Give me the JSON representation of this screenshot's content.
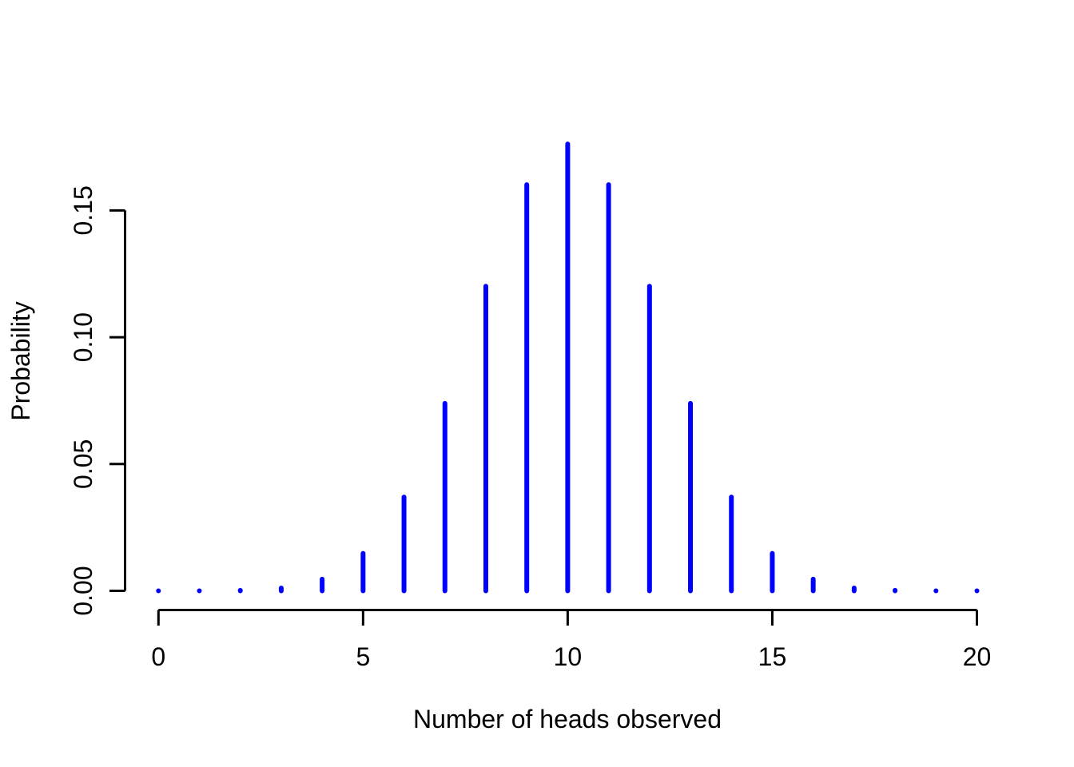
{
  "chart_data": {
    "type": "bar",
    "style": "vertical-spike-pmf",
    "title": "",
    "xlabel": "Number of heads observed",
    "ylabel": "Probability",
    "x": [
      0,
      1,
      2,
      3,
      4,
      5,
      6,
      7,
      8,
      9,
      10,
      11,
      12,
      13,
      14,
      15,
      16,
      17,
      18,
      19,
      20
    ],
    "values": [
      9.5e-07,
      1.907e-05,
      0.0001812,
      0.00108719,
      0.00462055,
      0.01478577,
      0.03696442,
      0.07392883,
      0.12013435,
      0.16017914,
      0.17619705,
      0.16017914,
      0.12013435,
      0.07392883,
      0.03696442,
      0.01478577,
      0.00462055,
      0.00108719,
      0.0001812,
      1.907e-05,
      9.5e-07
    ],
    "xticks": [
      0,
      5,
      10,
      15,
      20
    ],
    "xtick_labels": [
      "0",
      "5",
      "10",
      "15",
      "20"
    ],
    "yticks": [
      0.0,
      0.05,
      0.1,
      0.15
    ],
    "ytick_labels": [
      "0.00",
      "0.05",
      "0.10",
      "0.15"
    ],
    "xlim": [
      0,
      20
    ],
    "ylim": [
      0,
      0.18
    ],
    "grid": false,
    "legend": null,
    "series_color": "#0000ff",
    "axis_color": "#000000",
    "background_color": "#ffffff"
  }
}
